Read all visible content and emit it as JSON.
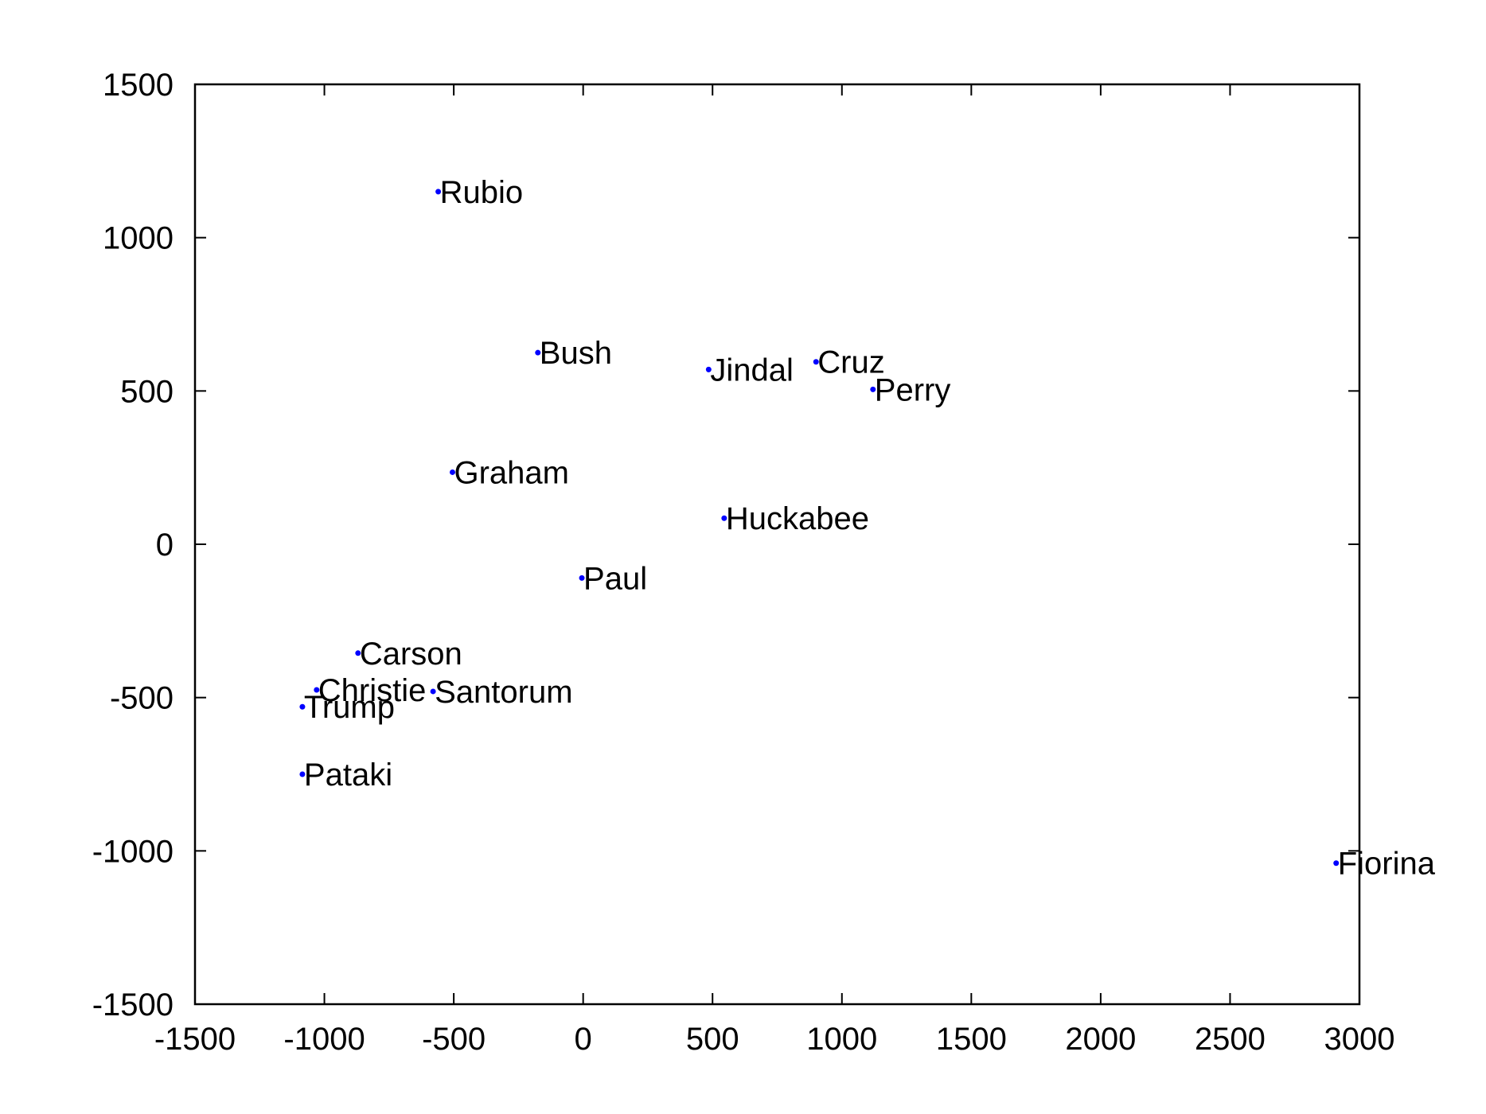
{
  "chart_data": {
    "type": "scatter",
    "title": "",
    "xlabel": "",
    "ylabel": "",
    "xlim": [
      -1500,
      3000
    ],
    "ylim": [
      -1500,
      1500
    ],
    "xticks": [
      -1500,
      -1000,
      -500,
      0,
      500,
      1000,
      1500,
      2000,
      2500,
      3000
    ],
    "yticks": [
      -1500,
      -1000,
      -500,
      0,
      500,
      1000,
      1500
    ],
    "grid": false,
    "point_color": "#0000ff",
    "axis_color": "#000000",
    "points": [
      {
        "label": "Rubio",
        "x": -560,
        "y": 1150
      },
      {
        "label": "Bush",
        "x": -175,
        "y": 625
      },
      {
        "label": "Jindal",
        "x": 485,
        "y": 570
      },
      {
        "label": "Cruz",
        "x": 900,
        "y": 595
      },
      {
        "label": "Perry",
        "x": 1120,
        "y": 505
      },
      {
        "label": "Graham",
        "x": -505,
        "y": 235
      },
      {
        "label": "Huckabee",
        "x": 545,
        "y": 85
      },
      {
        "label": "Paul",
        "x": -5,
        "y": -110
      },
      {
        "label": "Carson",
        "x": -870,
        "y": -355
      },
      {
        "label": "Christie",
        "x": -1030,
        "y": -475
      },
      {
        "label": "Santorum",
        "x": -580,
        "y": -480
      },
      {
        "label": "Trump",
        "x": -1085,
        "y": -530
      },
      {
        "label": "Pataki",
        "x": -1085,
        "y": -750
      },
      {
        "label": "Fiorina",
        "x": 2910,
        "y": -1040
      }
    ]
  }
}
